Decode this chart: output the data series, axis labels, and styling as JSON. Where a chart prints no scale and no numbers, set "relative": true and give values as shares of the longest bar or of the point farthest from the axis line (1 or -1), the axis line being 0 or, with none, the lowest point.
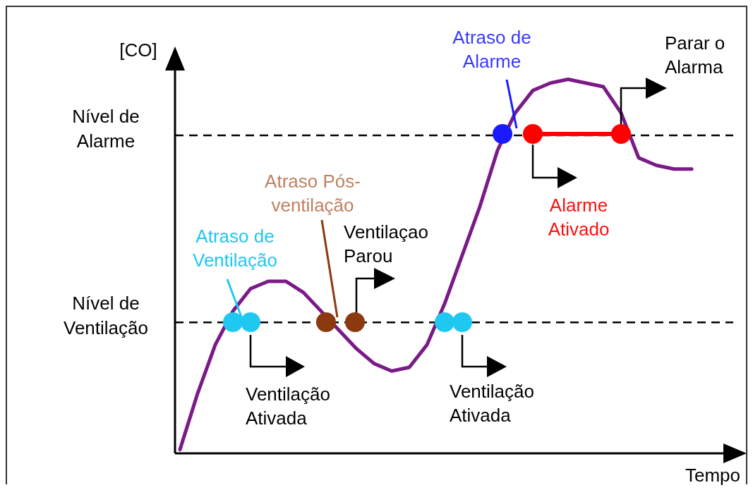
{
  "chart_data": {
    "type": "line",
    "relative": true,
    "xlabel": "Tempo",
    "ylabel": "[CO]",
    "categories": [
      null,
      null,
      null,
      null,
      null,
      null,
      null,
      null,
      null,
      null,
      null,
      null,
      null,
      null,
      null,
      null,
      null,
      null,
      null,
      null,
      null,
      null,
      null,
      null,
      null,
      null,
      null,
      null,
      null,
      null
    ],
    "color": "#7a1a87",
    "values": [
      0.01,
      0.16,
      0.29,
      0.38,
      0.44,
      0.46,
      0.46,
      0.43,
      0.38,
      0.33,
      0.28,
      0.24,
      0.22,
      0.23,
      0.29,
      0.4,
      0.53,
      0.66,
      0.81,
      0.91,
      0.97,
      0.99,
      1.0,
      0.99,
      0.98,
      0.91,
      0.79,
      0.77,
      0.76,
      0.76
    ],
    "ref_lines": [
      {
        "axis": "y",
        "value": 0.35,
        "label": "Nível de Ventilação",
        "line_style": "dashed",
        "color": "#000000"
      },
      {
        "axis": "y",
        "value": 0.85,
        "label": "Nível de Alarme",
        "line_style": "dashed",
        "color": "#000000"
      }
    ],
    "annotations": [
      "Atraso de Alarme",
      "Parar o Alarma",
      "Alarme Ativado",
      "Atraso Pós-ventilação",
      "Ventilaçao Parou",
      "Atraso de Ventilação",
      "Ventilação Ativada",
      "Ventilação Ativada"
    ]
  }
}
